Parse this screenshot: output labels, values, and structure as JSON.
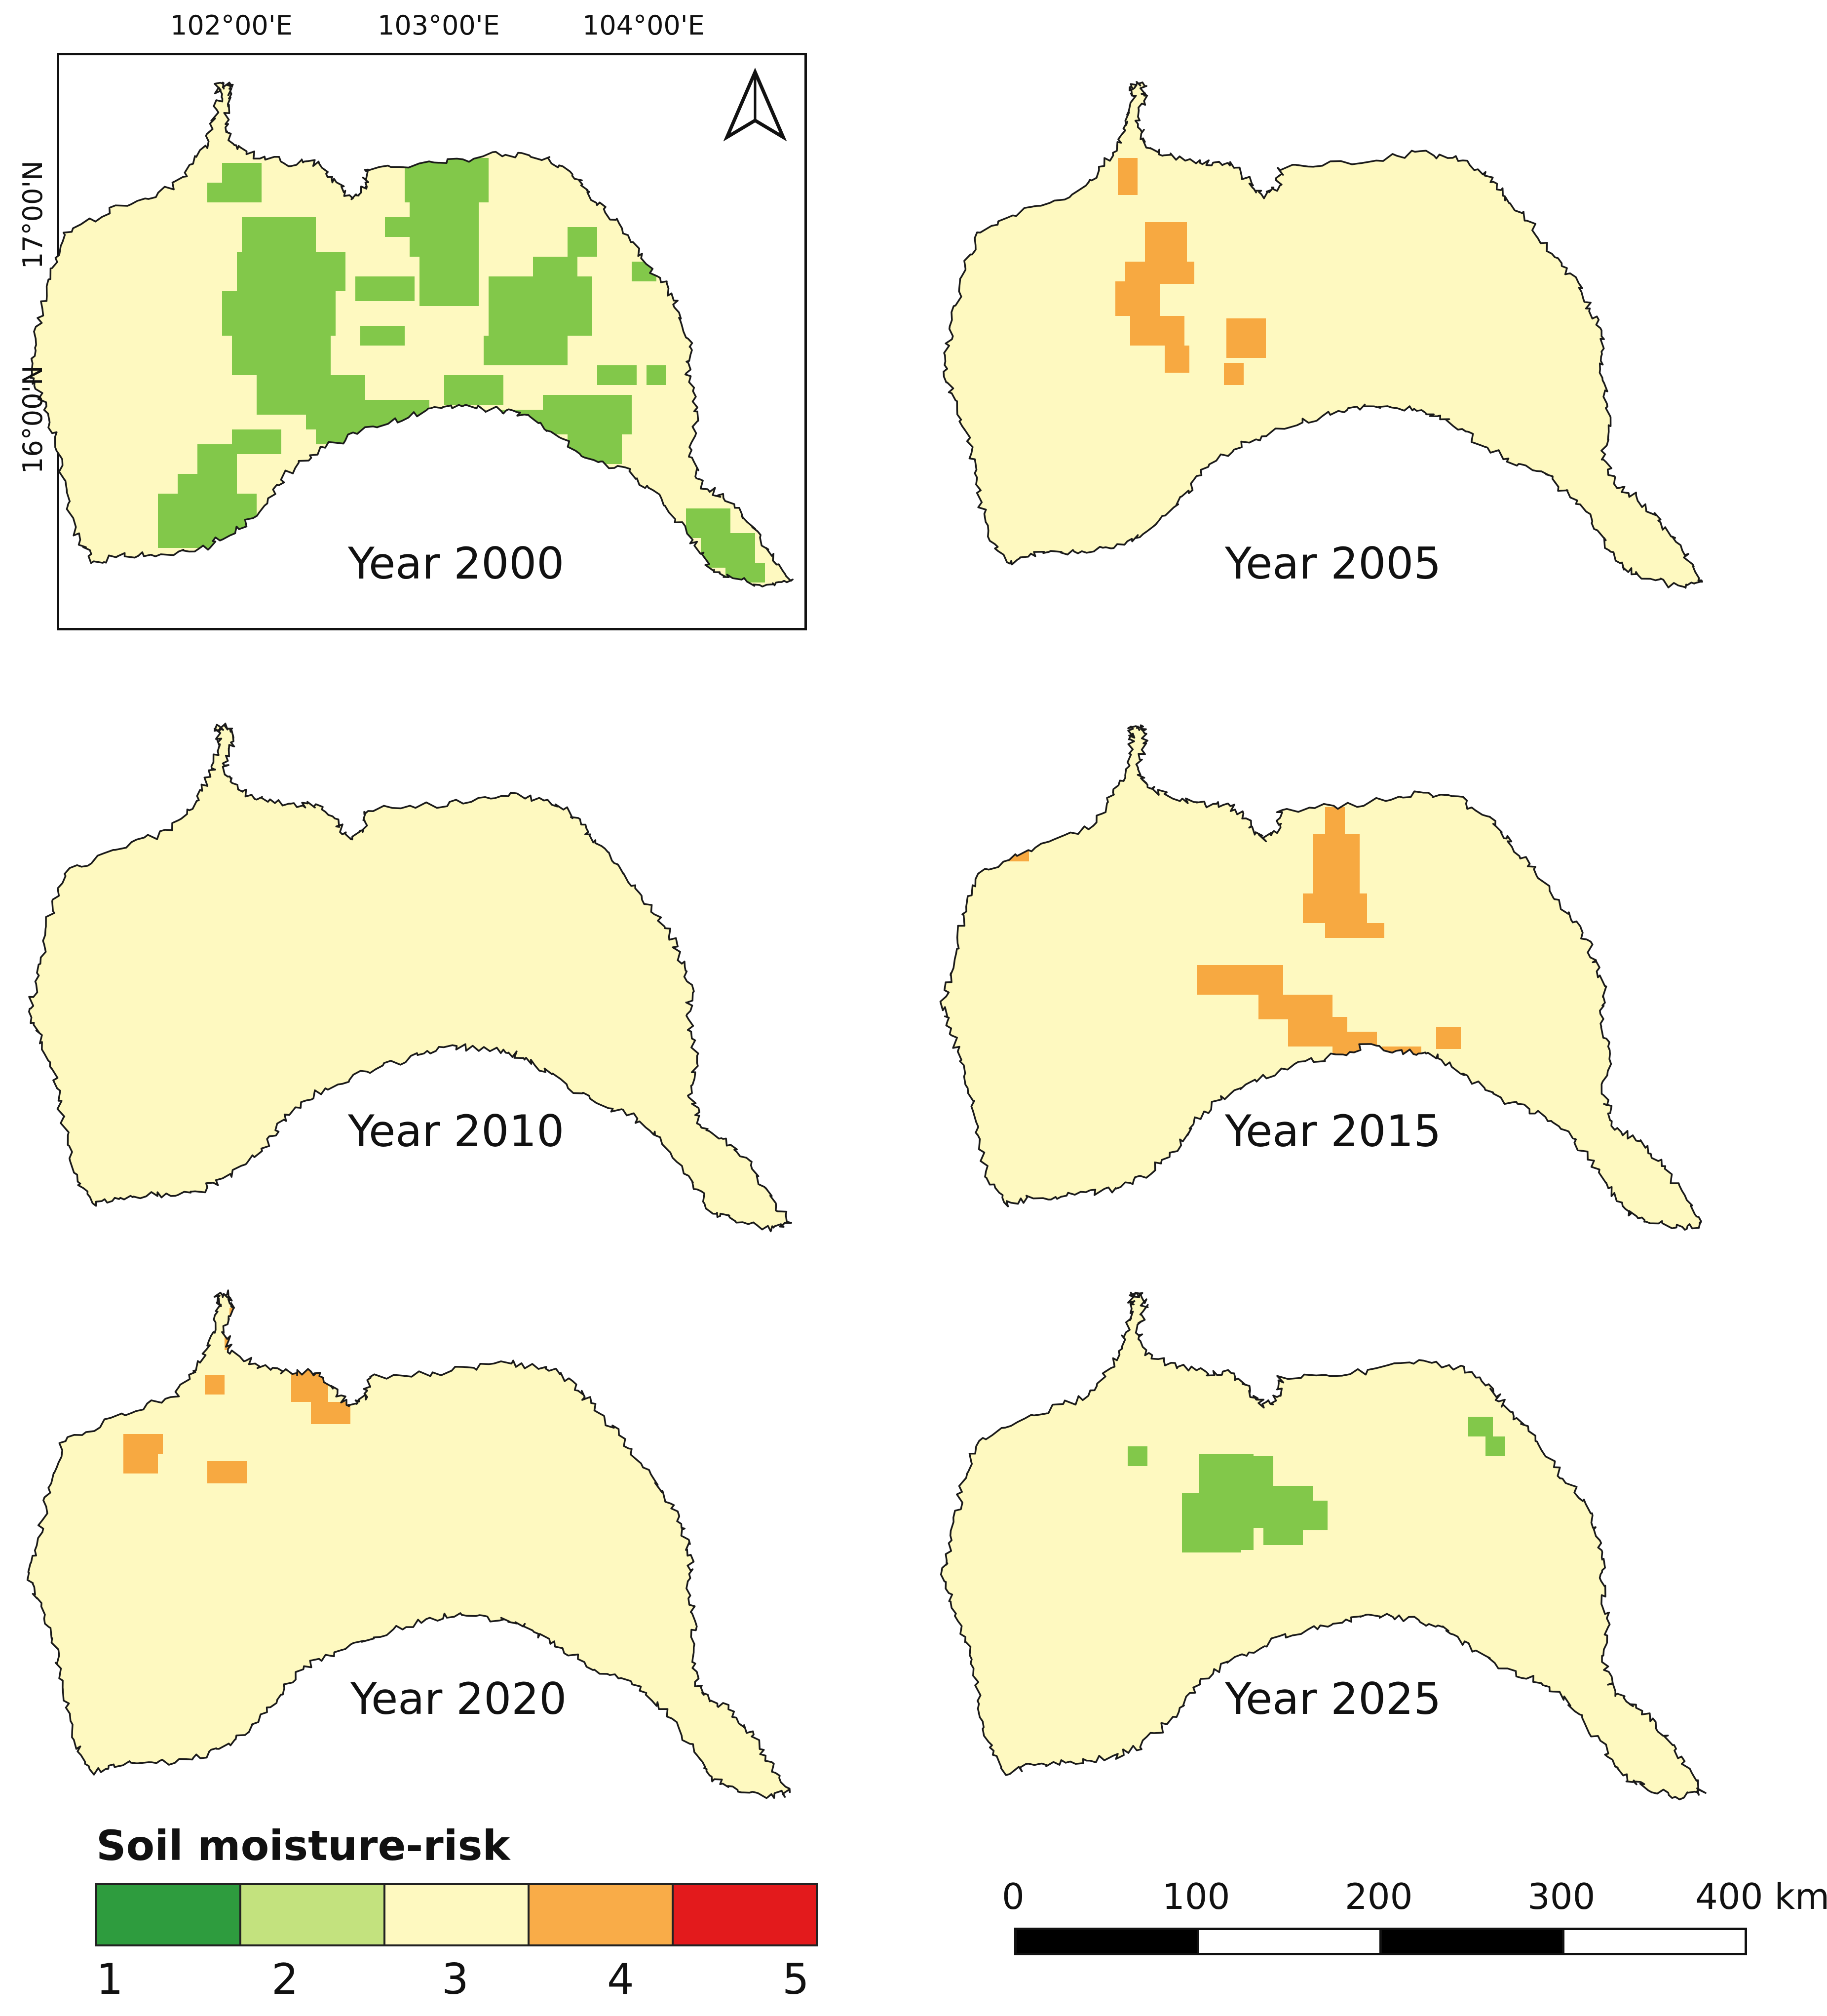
{
  "colors": {
    "class1": "#2e9c3e",
    "class2": "#c3e27e",
    "class3": "#fef9c0",
    "class4": "#f9ac48",
    "class5": "#e31a1c",
    "mapped_green": "#82c84a",
    "mapped_orange": "#f7a941",
    "outline": "#1a1a1a"
  },
  "panels": [
    {
      "id": "y2000",
      "label": "Year 2000",
      "pattern": "wet"
    },
    {
      "id": "y2005",
      "label": "Year 2005",
      "pattern": "dry-center"
    },
    {
      "id": "y2010",
      "label": "Year 2010",
      "pattern": "uniform"
    },
    {
      "id": "y2015",
      "label": "Year 2015",
      "pattern": "dry-southeast"
    },
    {
      "id": "y2020",
      "label": "Year 2020",
      "pattern": "dry-northwest"
    },
    {
      "id": "y2025",
      "label": "Year 2025",
      "pattern": "wet-patches"
    }
  ],
  "graticule": {
    "longitudes": [
      "102°00'E",
      "103°00'E",
      "104°00'E"
    ],
    "latitudes": [
      "17°00'N",
      "16°00'N"
    ]
  },
  "north_arrow": "north-arrow-icon",
  "legend": {
    "title": "Soil moisture-risk",
    "classes": [
      "1",
      "2",
      "3",
      "4",
      "5"
    ]
  },
  "scale_bar": {
    "labels": [
      "0",
      "100",
      "200",
      "300",
      "400 km"
    ]
  }
}
